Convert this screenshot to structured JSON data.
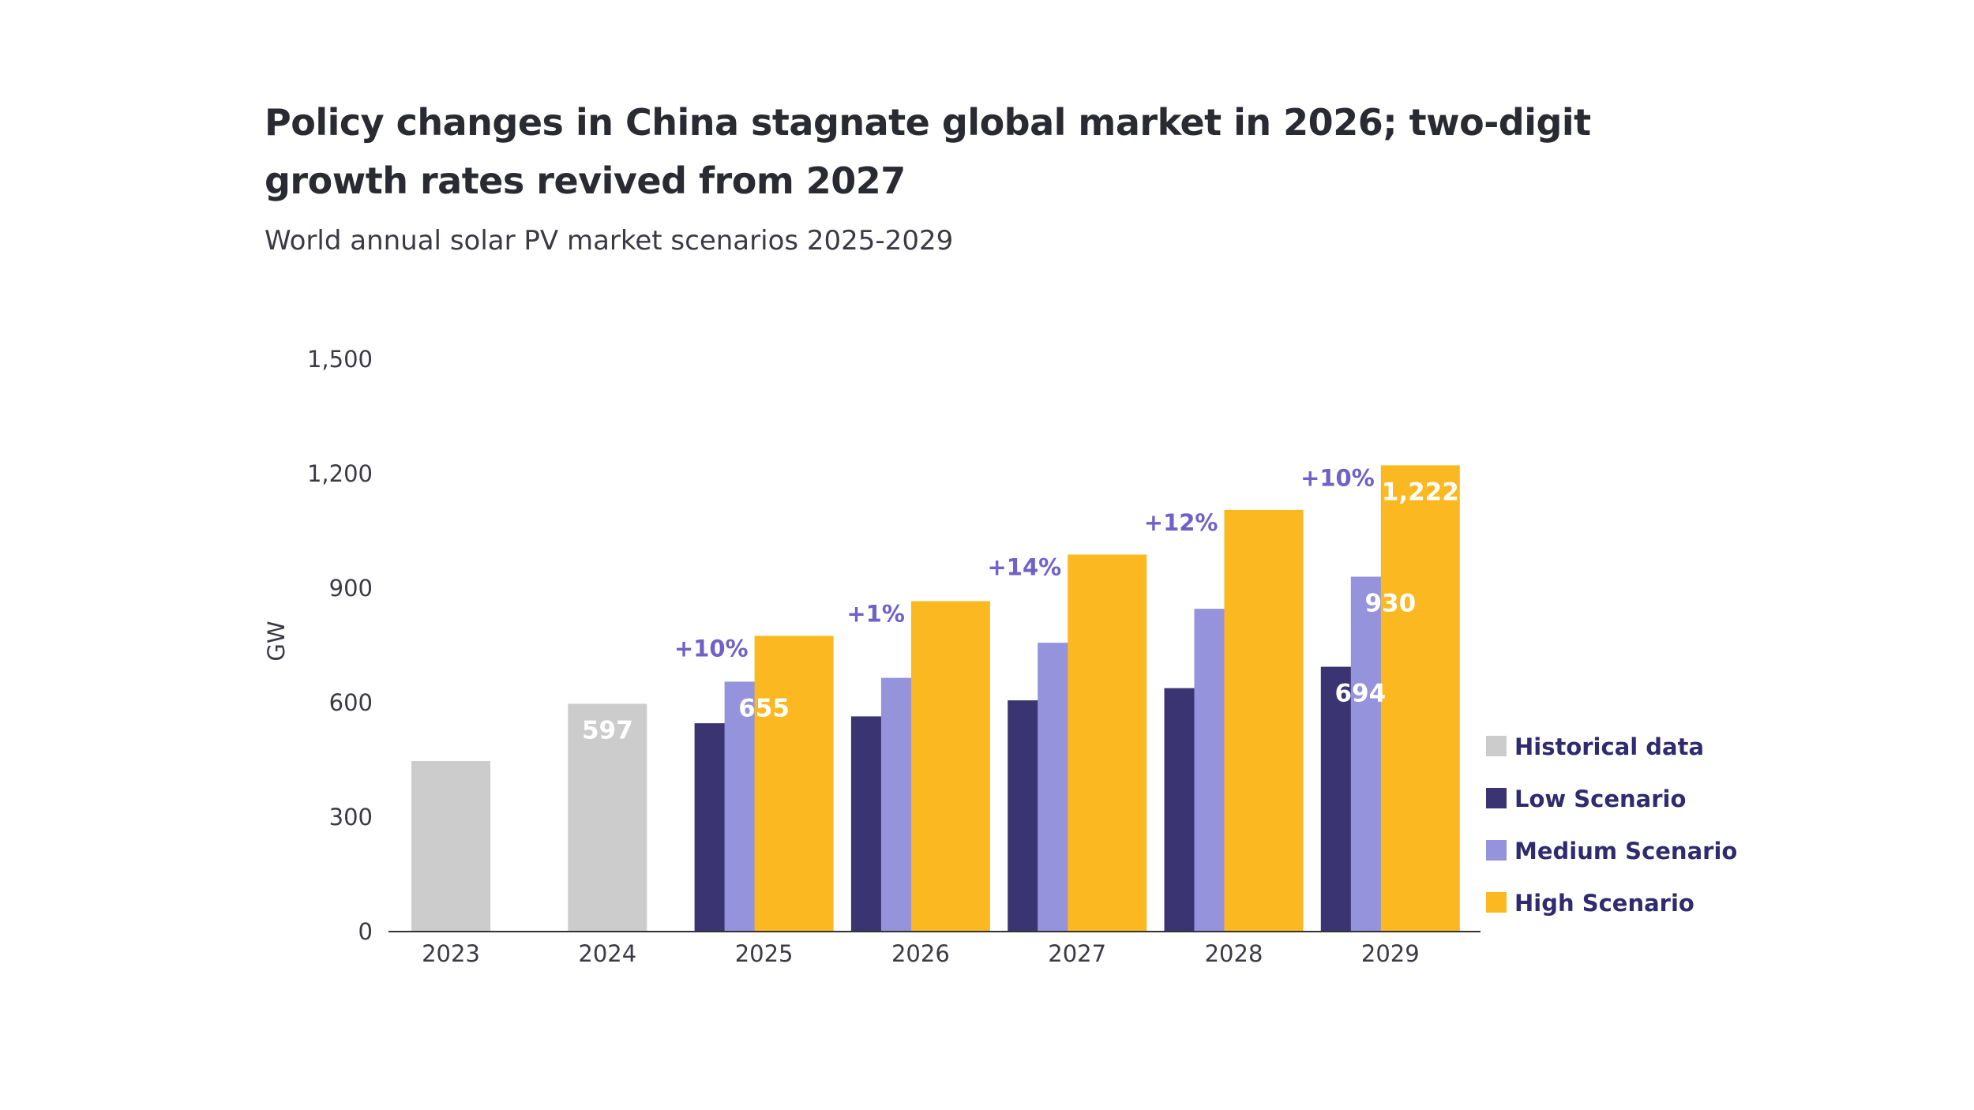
{
  "title": "Policy changes in China stagnate global market in 2026; two-digit growth rates revived from 2027",
  "subtitle": "World annual solar PV market scenarios 2025-2029",
  "chart_data": {
    "type": "bar",
    "ylabel": "GW",
    "xlabel": "",
    "ylim": [
      0,
      1500
    ],
    "yticks": [
      "0",
      "300",
      "600",
      "900",
      "1,200",
      "1,500"
    ],
    "ytick_values": [
      0,
      300,
      600,
      900,
      1200,
      1500
    ],
    "categories": [
      "2023",
      "2024",
      "2025",
      "2026",
      "2027",
      "2028",
      "2029"
    ],
    "legend_position": "right",
    "series": [
      {
        "name": "Historical data",
        "color": "#cccccc",
        "values": [
          447,
          597,
          null,
          null,
          null,
          null,
          null
        ]
      },
      {
        "name": "Low Scenario",
        "color": "#3b3472",
        "values": [
          null,
          null,
          546,
          564,
          606,
          638,
          694
        ]
      },
      {
        "name": "Medium Scenario",
        "color": "#9693dd",
        "values": [
          null,
          null,
          655,
          665,
          757,
          846,
          930
        ]
      },
      {
        "name": "High Scenario",
        "color": "#fcb820",
        "values": [
          null,
          null,
          775,
          866,
          988,
          1105,
          1222
        ]
      }
    ],
    "value_labels": [
      {
        "series": 0,
        "category": 1,
        "text": "597"
      },
      {
        "series": 2,
        "category": 2,
        "text": "655"
      },
      {
        "series": 1,
        "category": 6,
        "text": "694"
      },
      {
        "series": 2,
        "category": 6,
        "text": "930"
      },
      {
        "series": 3,
        "category": 6,
        "text": "1,222"
      }
    ],
    "growth_labels": [
      {
        "category": 2,
        "text": "+10%"
      },
      {
        "category": 3,
        "text": "+1%"
      },
      {
        "category": 4,
        "text": "+14%"
      },
      {
        "category": 5,
        "text": "+12%"
      },
      {
        "category": 6,
        "text": "+10%"
      }
    ]
  }
}
